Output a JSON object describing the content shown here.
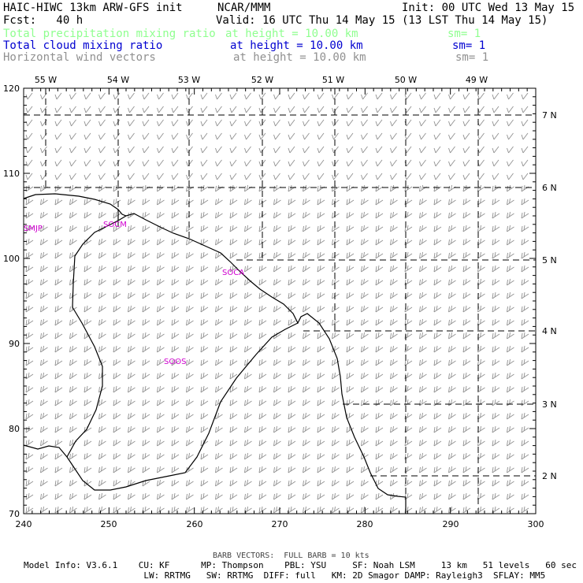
{
  "header": {
    "title": "HAIC-HIWC 13km ARW-GFS init",
    "org": "NCAR/MMM",
    "init": "Init: 00 UTC Wed 13 May 15",
    "fcst": "Fcst:   40 h",
    "valid": "Valid: 16 UTC Thu 14 May 15 (13 LST Thu 14 May 15)",
    "fields": [
      {
        "name": "Total precipitation mixing ratio",
        "height": "at height = 10.00 km",
        "sm": "sm= 1",
        "color": "#8fff8f"
      },
      {
        "name": "Total cloud mixing ratio",
        "height": "at height = 10.00 km",
        "sm": "sm= 1",
        "color": "#0000d0"
      },
      {
        "name": "Horizontal wind vectors",
        "height": "at height = 10.00 km",
        "sm": "sm= 1",
        "color": "#909090"
      }
    ]
  },
  "map": {
    "x_ticks": [
      "240",
      "250",
      "260",
      "270",
      "280",
      "290",
      "300"
    ],
    "y_ticks": [
      "70",
      "80",
      "90",
      "100",
      "110",
      "120"
    ],
    "lon_labels": [
      "55 W",
      "54 W",
      "53 W",
      "52 W",
      "51 W",
      "50 W",
      "49 W"
    ],
    "lat_labels": [
      "7 N",
      "6 N",
      "5 N",
      "4 N",
      "3 N",
      "2 N"
    ],
    "stations": [
      "SMJP",
      "SOCM",
      "SOCA",
      "SOOS"
    ],
    "barb_color": "#909090",
    "coast_color": "#000000",
    "station_color": "#d000d0"
  },
  "footer": {
    "barb_note": "BARB VECTORS:  FULL BARB = 10 kts",
    "line1": "Model Info: V3.6.1    CU: KF      MP: Thompson    PBL: YSU     SF: Noah LSM     13 km   51 levels   60 sec",
    "line2": "                       LW: RRTMG   SW: RRTMG  DIFF: full   KM: 2D Smagor DAMP: Rayleigh3  SFLAY: MM5"
  }
}
